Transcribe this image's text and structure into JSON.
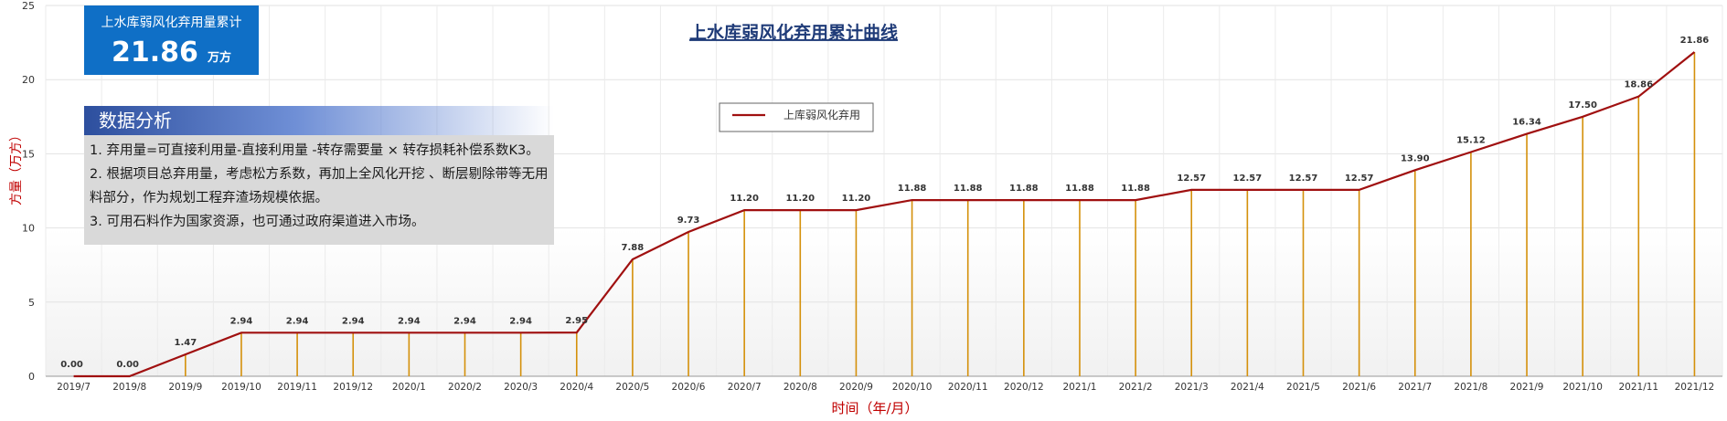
{
  "chart_data": {
    "type": "line",
    "title": "上水库弱风化弃用累计曲线",
    "xlabel": "时间（年/月）",
    "ylabel": "方量（万方）",
    "ylim": [
      0,
      25
    ],
    "yticks": [
      0,
      5,
      10,
      15,
      20,
      25
    ],
    "legend_position": "top-center",
    "grid": true,
    "categories": [
      "2019/7",
      "2019/8",
      "2019/9",
      "2019/10",
      "2019/11",
      "2019/12",
      "2020/1",
      "2020/2",
      "2020/3",
      "2020/4",
      "2020/5",
      "2020/6",
      "2020/7",
      "2020/8",
      "2020/9",
      "2020/10",
      "2020/11",
      "2020/12",
      "2021/1",
      "2021/2",
      "2021/3",
      "2021/4",
      "2021/5",
      "2021/6",
      "2021/7",
      "2021/8",
      "2021/9",
      "2021/10",
      "2021/11",
      "2021/12"
    ],
    "series": [
      {
        "name": "上库弱风化弃用",
        "color": "#a01010",
        "drop_line_color": "#d4900a",
        "values": [
          0.0,
          0.0,
          1.47,
          2.94,
          2.94,
          2.94,
          2.94,
          2.94,
          2.94,
          2.95,
          7.88,
          9.73,
          11.2,
          11.2,
          11.2,
          11.88,
          11.88,
          11.88,
          11.88,
          11.88,
          12.57,
          12.57,
          12.57,
          12.57,
          13.9,
          15.12,
          16.34,
          17.5,
          18.86,
          21.86
        ],
        "data_labels": [
          "0.00",
          "0.00",
          "1.47",
          "2.94",
          "2.94",
          "2.94",
          "2.94",
          "2.94",
          "2.94",
          "2.95",
          "7.88",
          "9.73",
          "11.20",
          "11.20",
          "11.20",
          "11.88",
          "11.88",
          "11.88",
          "11.88",
          "11.88",
          "12.57",
          "12.57",
          "12.57",
          "12.57",
          "13.90",
          "15.12",
          "16.34",
          "17.50",
          "18.86",
          "21.86"
        ]
      }
    ]
  },
  "kpi": {
    "label": "上水库弱风化弃用量累计",
    "value": "21.86",
    "unit": "万方"
  },
  "analysis": {
    "title": "数据分析",
    "items": [
      "1. 弃用量=可直接利用量-直接利用量 -转存需要量 × 转存损耗补偿系数K3。",
      "2. 根据项目总弃用量，考虑松方系数，再加上全风化开挖 、断层剔除带等无用料部分，作为规划工程弃渣场规模依据。",
      "3. 可用石料作为国家资源，也可通过政府渠道进入市场。"
    ]
  }
}
